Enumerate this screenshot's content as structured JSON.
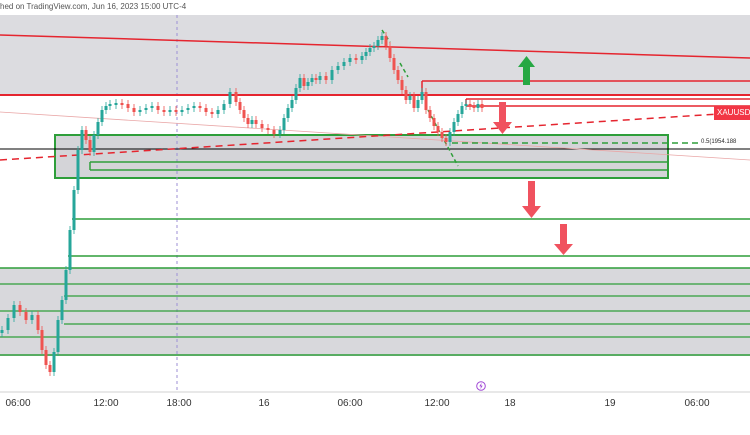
{
  "header": {
    "text": "hed on TradingView.com, Jun 16, 2023 15:00 UTC-4"
  },
  "symbol_badge": "XAUUSD",
  "fib_label": "0.5(1954.188",
  "colors": {
    "up": "#26a69a",
    "down": "#ef5350",
    "resistance": "#e5252f",
    "support": "#2e9e3a",
    "zone": "#d4d4d8",
    "arrow_up": "#27a844",
    "arrow_down": "#f0525f",
    "badge": "#f23645"
  },
  "chart_data": {
    "type": "candlestick",
    "symbol": "XAUUSD",
    "x_tick_labels": [
      "06:00",
      "12:00",
      "18:00",
      "16",
      "06:00",
      "12:00",
      "18",
      "19",
      "06:00"
    ],
    "price_level_labels": [
      "0.5(1954.188"
    ],
    "annotations": [
      "up arrow",
      "down arrow",
      "down arrow",
      "down arrow"
    ],
    "grid": false,
    "legend": "none"
  }
}
